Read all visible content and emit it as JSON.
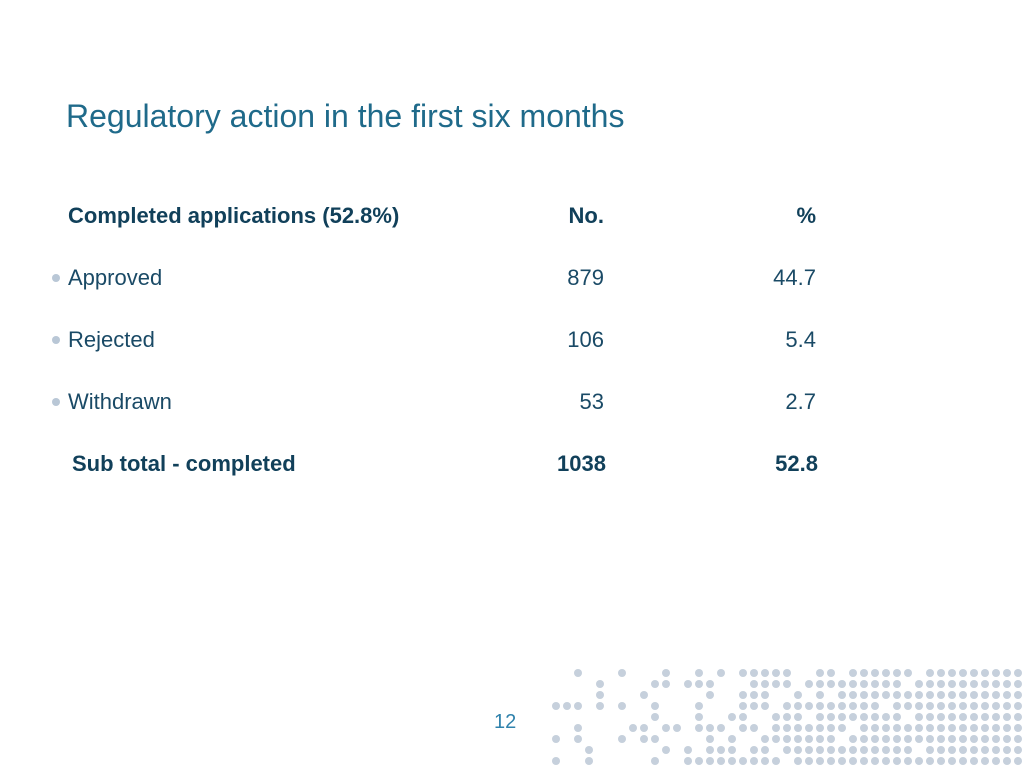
{
  "slide": {
    "title": "Regulatory action in the first six months",
    "page_number": "12"
  },
  "table": {
    "header": {
      "label": "Completed applications (52.8%)",
      "no": "No.",
      "pct": "%"
    },
    "rows": [
      {
        "label": "Approved",
        "no": "879",
        "pct": "44.7"
      },
      {
        "label": "Rejected",
        "no": "106",
        "pct": "5.4"
      },
      {
        "label": "Withdrawn",
        "no": "53",
        "pct": "2.7"
      }
    ],
    "subtotal": {
      "label": "Sub total - completed",
      "no": "1038",
      "pct": "52.8"
    }
  },
  "colors": {
    "title": "#1f6a8a",
    "text": "#1a4a66",
    "bullet": "#b9c7d6",
    "dots": "#c6d0dc"
  }
}
